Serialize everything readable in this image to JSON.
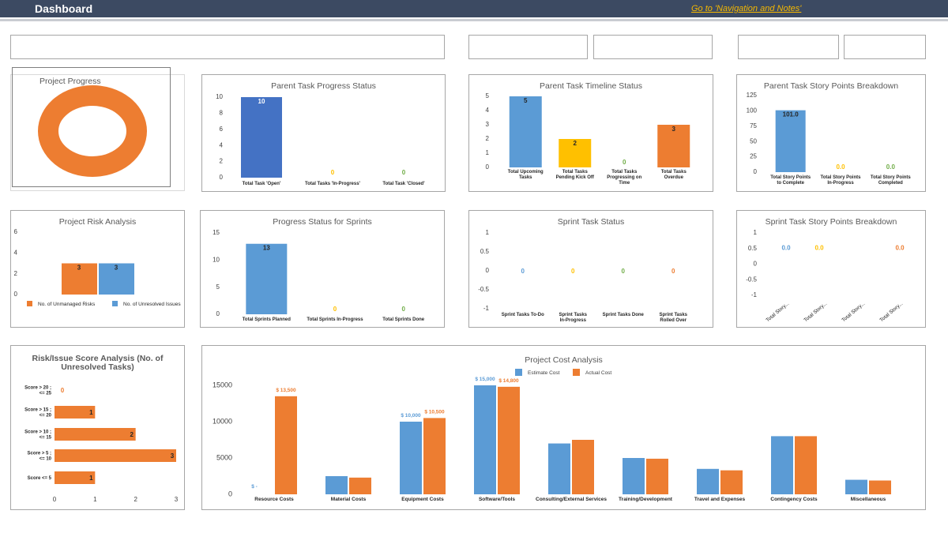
{
  "header": {
    "title": "Dashboard",
    "nav_link": "Go to 'Navigation and Notes'"
  },
  "colors": {
    "header_bg": "#3c4a62",
    "blue_dark": "#4472c4",
    "blue": "#5b9bd5",
    "orange": "#ed7d31",
    "yellow": "#ffc000",
    "green": "#70ad47",
    "link": "#f5b800"
  },
  "project_progress": {
    "title": "Project Progress"
  },
  "parent_task_progress": {
    "title": "Parent Task Progress Status",
    "chart_data": {
      "type": "bar",
      "categories": [
        "Total Task 'Open'",
        "Total Tasks 'In-Progress'",
        "Total Task 'Closed'"
      ],
      "values": [
        10,
        0,
        0
      ],
      "data_labels": [
        "10",
        "0",
        "0"
      ],
      "ylim": [
        0,
        10
      ],
      "yticks": [
        "0",
        "2",
        "4",
        "6",
        "8",
        "10"
      ]
    }
  },
  "parent_task_timeline": {
    "title": "Parent Task Timeline Status",
    "chart_data": {
      "type": "bar",
      "categories": [
        [
          "Total Upcoming",
          "Tasks"
        ],
        [
          "Total Tasks",
          "Pending Kick Off"
        ],
        [
          "Total Tasks",
          "Progressing on",
          "Time"
        ],
        [
          "Total Tasks",
          "Overdue"
        ]
      ],
      "values": [
        5,
        2,
        0,
        3
      ],
      "data_labels": [
        "5",
        "2",
        "0",
        "3"
      ],
      "ylim": [
        0,
        5
      ],
      "yticks": [
        "0",
        "1",
        "2",
        "3",
        "4",
        "5"
      ]
    }
  },
  "parent_story_points": {
    "title": "Parent Task Story Points Breakdown",
    "chart_data": {
      "type": "bar",
      "categories": [
        [
          "Total Story Points",
          "to Complete"
        ],
        [
          "Total Story Points",
          "In-Progress"
        ],
        [
          "Total Story Points",
          "Completed"
        ]
      ],
      "values": [
        101,
        0,
        0
      ],
      "data_labels": [
        "101.0",
        "0.0",
        "0.0"
      ],
      "ylim": [
        0,
        125
      ],
      "yticks": [
        "0",
        "25",
        "50",
        "75",
        "100",
        "125"
      ]
    }
  },
  "project_risk": {
    "title": "Project Risk Analysis",
    "chart_data": {
      "type": "bar",
      "categories": [
        ""
      ],
      "series": [
        {
          "name": "No. of Unmanaged Risks",
          "values": [
            3
          ]
        },
        {
          "name": "No. of Unresolved Issues",
          "values": [
            3
          ]
        }
      ],
      "data_labels": [
        "3",
        "3"
      ],
      "ylim": [
        0,
        6
      ],
      "yticks": [
        "0",
        "2",
        "4",
        "6"
      ]
    }
  },
  "sprint_progress": {
    "title": "Progress Status for Sprints",
    "chart_data": {
      "type": "bar",
      "categories": [
        "Total Sprints Planned",
        "Total Sprints In-Progress",
        "Total Sprints Done"
      ],
      "values": [
        13,
        0,
        0
      ],
      "data_labels": [
        "13",
        "0",
        "0"
      ],
      "ylim": [
        0,
        15
      ],
      "yticks": [
        "0",
        "5",
        "10",
        "15"
      ]
    }
  },
  "sprint_task_status": {
    "title": "Sprint Task Status",
    "chart_data": {
      "type": "bar",
      "categories": [
        [
          "Sprint Tasks To-Do"
        ],
        [
          "Sprint Tasks",
          "In-Progress"
        ],
        [
          "Sprint Tasks Done"
        ],
        [
          "Sprint Tasks",
          "Rolled Over"
        ]
      ],
      "values": [
        0,
        0,
        0,
        0
      ],
      "data_labels": [
        "0",
        "0",
        "0",
        "0"
      ],
      "ylim": [
        -1,
        1
      ],
      "yticks": [
        "-1",
        "-0.5",
        "0",
        "0.5",
        "1"
      ]
    }
  },
  "sprint_story_points": {
    "title": "Sprint Task Story Points Breakdown",
    "chart_data": {
      "type": "bar",
      "categories": [
        "Total Story...",
        "Total Story...",
        "Total Story...",
        "Total Story..."
      ],
      "values": [
        0,
        0,
        0,
        0
      ],
      "data_labels": [
        "0.0",
        "0.0",
        "",
        "0.0"
      ],
      "ylim": [
        -1,
        1
      ],
      "yticks": [
        "-1",
        "-0.5",
        "0",
        "0.5",
        "1"
      ]
    }
  },
  "risk_issue_score": {
    "title_lines": [
      "Risk/Issue Score Analysis (No. of",
      "Unresolved Tasks)"
    ],
    "chart_data": {
      "type": "bar",
      "orientation": "horizontal",
      "categories": [
        [
          "Score > 20 ;",
          "<= 25"
        ],
        [
          "Score > 15 ;",
          "<= 20"
        ],
        [
          "Score > 10 ;",
          "<= 15"
        ],
        [
          "Score > 5 ;",
          "<= 10"
        ],
        [
          "Score <= 5"
        ]
      ],
      "values": [
        0,
        1,
        2,
        3,
        1
      ],
      "data_labels": [
        "0",
        "1",
        "2",
        "3",
        "1"
      ],
      "xlim": [
        0,
        3
      ],
      "xticks": [
        "0",
        "1",
        "2",
        "3"
      ]
    }
  },
  "project_cost": {
    "title": "Project Cost Analysis",
    "chart_data": {
      "type": "bar",
      "categories": [
        "Resource Costs",
        "Material Costs",
        "Equipment Costs",
        "Software/Tools",
        "Consulting/External Services",
        "Training/Development",
        "Travel and Expenses",
        "Contingency Costs",
        "Miscellaneous"
      ],
      "series": [
        {
          "name": "Estimate Cost",
          "values": [
            0,
            2500,
            10000,
            15000,
            7000,
            5000,
            3500,
            8000,
            2000
          ],
          "labels": [
            "$ -",
            "",
            "$ 10,000",
            "$ 15,000",
            "",
            "",
            "",
            "",
            ""
          ]
        },
        {
          "name": "Actual Cost",
          "values": [
            13500,
            2300,
            10500,
            14800,
            7500,
            4900,
            3300,
            8000,
            1900
          ],
          "labels": [
            "$ 13,500",
            "",
            "$ 10,500",
            "$ 14,800",
            "",
            "",
            "",
            "",
            ""
          ]
        }
      ],
      "ylim": [
        0,
        15000
      ],
      "yticks": [
        "0",
        "5000",
        "10000",
        "15000"
      ]
    }
  }
}
